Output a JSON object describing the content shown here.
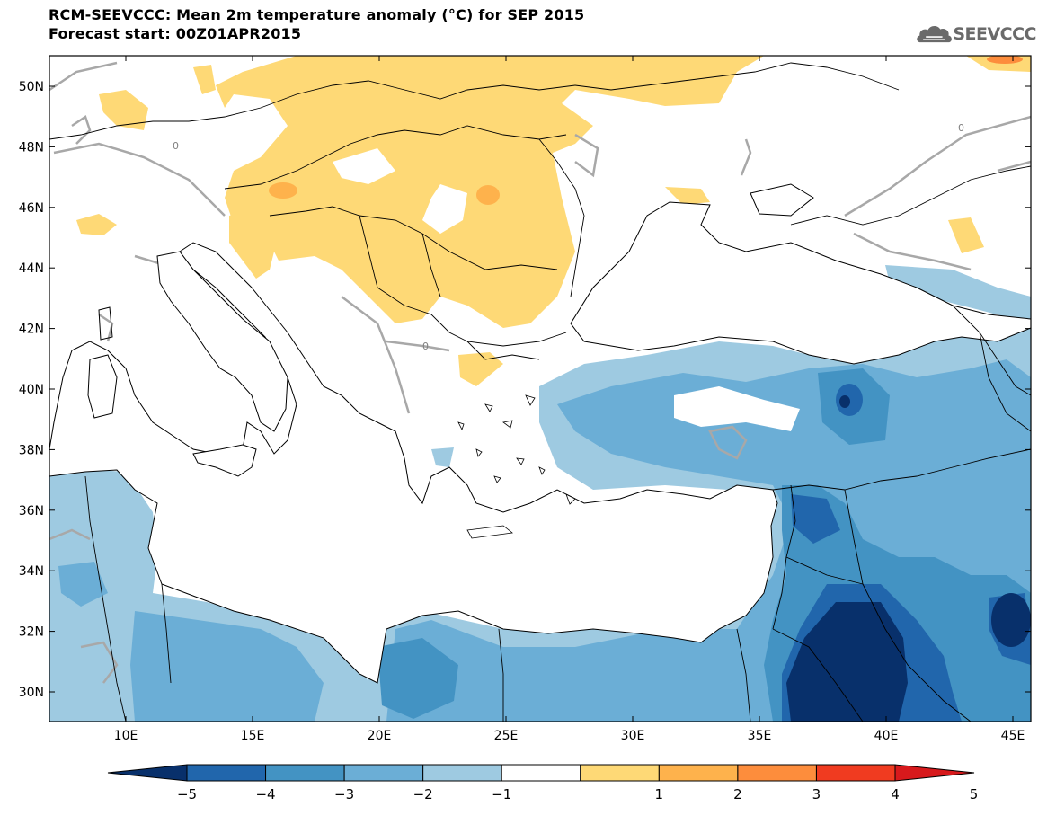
{
  "header": {
    "title": "RCM-SEEVCCC: Mean 2m temperature anomaly (°C) for SEP 2015",
    "subtitle": "Forecast start: 00Z01APR2015"
  },
  "logo": {
    "text": "SEEVCCC",
    "icon": "cloud-icon"
  },
  "map": {
    "lat_labels": [
      "50N",
      "48N",
      "46N",
      "44N",
      "42N",
      "40N",
      "38N",
      "36N",
      "34N",
      "32N",
      "30N"
    ],
    "lon_labels": [
      "10E",
      "15E",
      "20E",
      "25E",
      "30E",
      "35E",
      "40E",
      "45E"
    ],
    "contour_label": "0"
  },
  "colorbar": {
    "labels": [
      "−5",
      "−4",
      "−3",
      "−2",
      "−1",
      "1",
      "2",
      "3",
      "4",
      "5"
    ],
    "colors": [
      "#08306b",
      "#2166ac",
      "#4393c3",
      "#6baed6",
      "#9ecae1",
      "#ffffff",
      "#fed976",
      "#feb24c",
      "#fd8d3c",
      "#f03b20",
      "#d7191c"
    ],
    "under_color": "#08306b",
    "over_color": "#d7191c"
  },
  "palette": {
    "ocean": "#ffffff",
    "border": "#000000",
    "contour": "#a8a8a8"
  }
}
